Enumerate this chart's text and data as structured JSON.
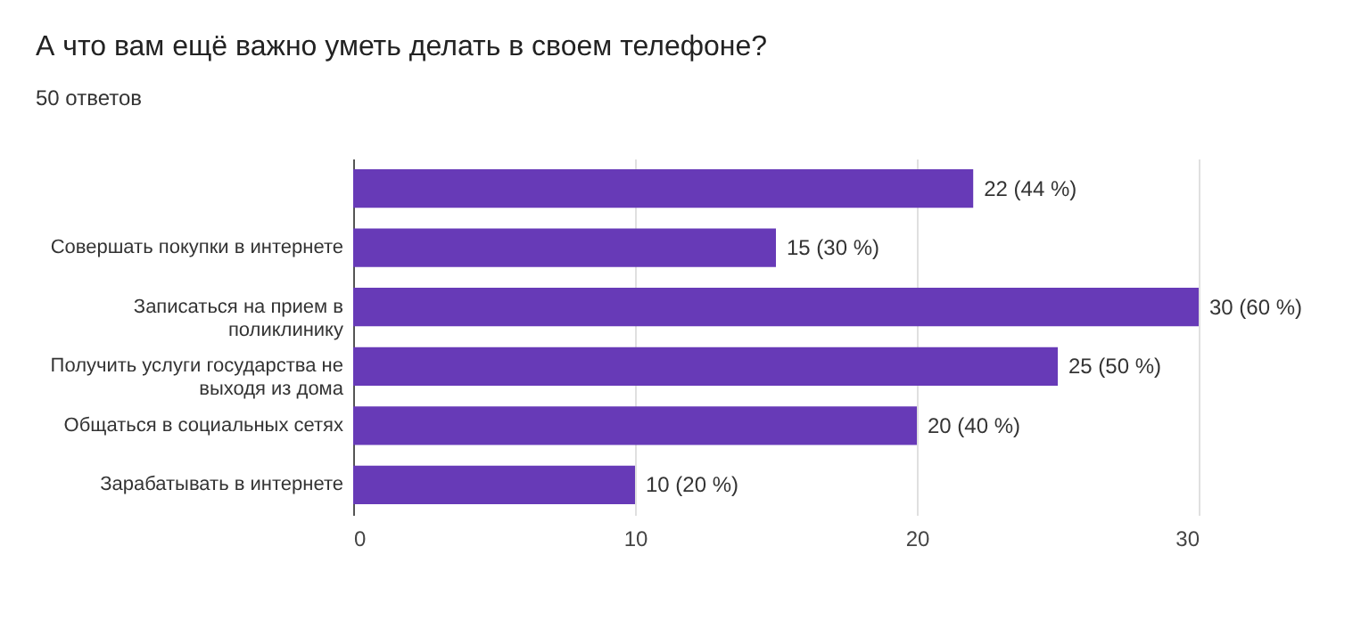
{
  "chart_data": {
    "type": "bar",
    "orientation": "horizontal",
    "title": "А что вам ещё важно уметь делать в своем телефоне?",
    "subtitle": "50 ответов",
    "categories": [
      null,
      "Совершать покупки в интернете",
      "Записаться на прием в поликлинику",
      "Получить услуги государства не выходя из дома",
      "Общаться в социальных сетях",
      "Зарабатывать в интернете"
    ],
    "values": [
      22,
      15,
      30,
      25,
      20,
      10
    ],
    "value_labels": [
      "22 (44 %)",
      "15 (30 %)",
      "30 (60 %)",
      "25 (50 %)",
      "20 (40 %)",
      "10 (20 %)"
    ],
    "color": "#673ab7",
    "xlim": [
      0,
      30
    ],
    "xticks": [
      0,
      10,
      20,
      30
    ],
    "grid": "x"
  }
}
